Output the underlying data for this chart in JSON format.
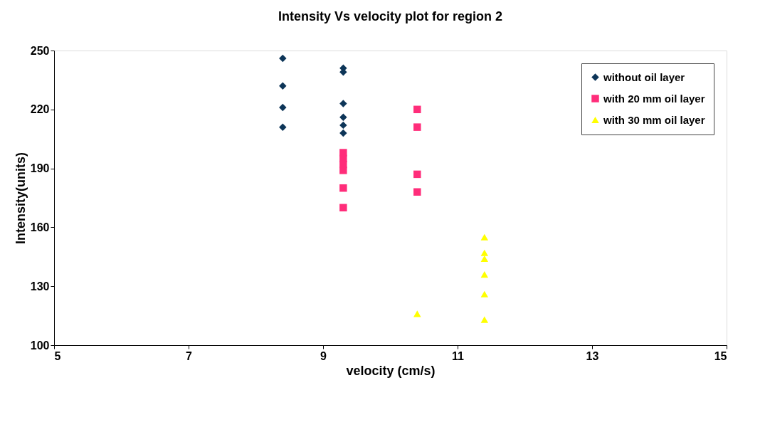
{
  "chart_data": {
    "type": "scatter",
    "title": "Intensity Vs velocity plot for region 2",
    "xlabel": "velocity (cm/s)",
    "ylabel": "Intensity(units)",
    "xlim": [
      5,
      15
    ],
    "xticks": [
      5,
      7,
      9,
      11,
      13,
      15
    ],
    "ylim": [
      100,
      250
    ],
    "yticks": [
      100,
      130,
      160,
      190,
      220,
      250
    ],
    "grid": false,
    "legend": "top right",
    "series": [
      {
        "name": "without oil layer",
        "color": "#0d3558",
        "marker": "diamond",
        "x": [
          8.4,
          8.4,
          8.4,
          8.4,
          9.3,
          9.3,
          9.3,
          9.3,
          9.3,
          9.3
        ],
        "values": [
          246,
          232,
          221,
          211,
          241,
          239,
          223,
          216,
          212,
          208
        ]
      },
      {
        "name": "with 20 mm oil layer",
        "color": "#ff2d7a",
        "marker": "square",
        "x": [
          9.3,
          9.3,
          9.3,
          9.3,
          9.3,
          9.3,
          10.4,
          10.4,
          10.4,
          10.4
        ],
        "values": [
          198,
          195,
          192,
          189,
          180,
          170,
          220,
          211,
          187,
          178
        ]
      },
      {
        "name": "with 30 mm oil layer",
        "color": "#ffff00",
        "marker": "triangle",
        "x": [
          10.4,
          11.4,
          11.4,
          11.4,
          11.4,
          11.4,
          11.4
        ],
        "values": [
          116,
          155,
          147,
          144,
          136,
          126,
          113
        ]
      }
    ]
  }
}
